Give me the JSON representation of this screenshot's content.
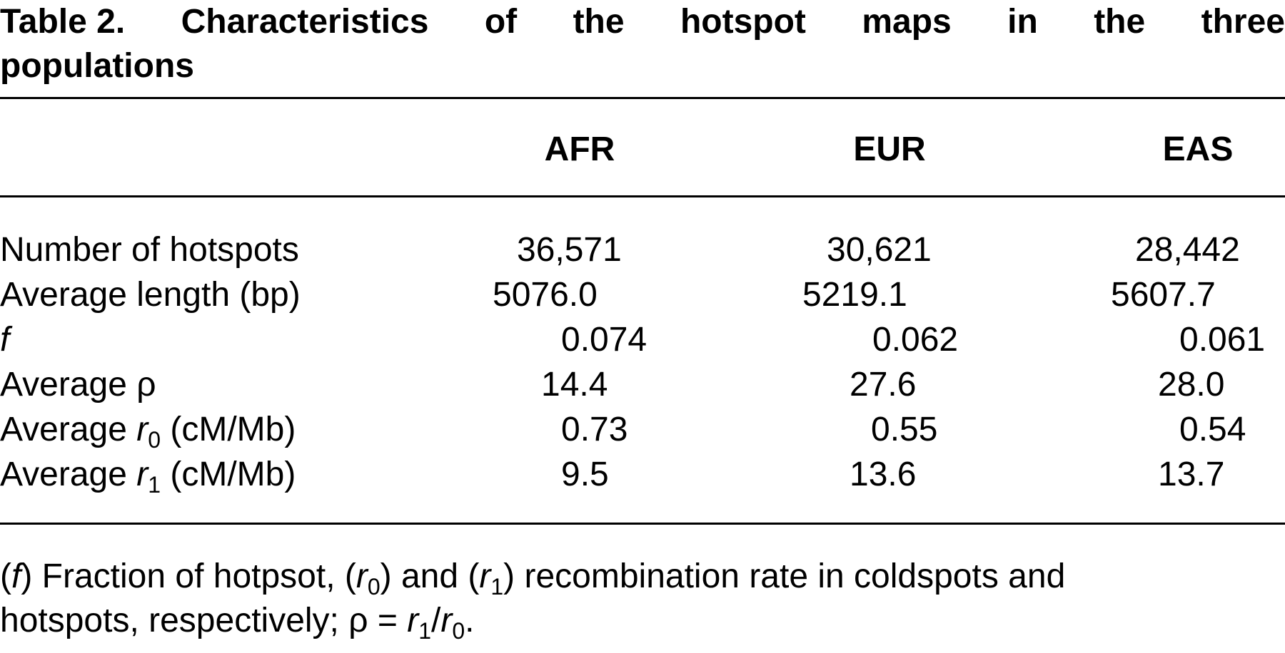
{
  "caption": {
    "label": "Table 2.",
    "title_words_line1": [
      "Characteristics",
      "of",
      "the",
      "hotspot",
      "maps",
      "in",
      "the",
      "three"
    ],
    "title_line2": "populations"
  },
  "table": {
    "columns": [
      "AFR",
      "EUR",
      "EAS"
    ],
    "rows": [
      {
        "label": "Number of hotspots",
        "values": [
          "36,571",
          "30,621",
          "28,442"
        ]
      },
      {
        "label": "Average length (bp)",
        "values": [
          "5076.0",
          "5219.1",
          "5607.7"
        ]
      },
      {
        "label": "f",
        "values": [
          "0.074",
          "0.062",
          "0.061"
        ]
      },
      {
        "label": "Average ρ",
        "values": [
          "14.4",
          "27.6",
          "28.0"
        ]
      },
      {
        "label_prefix": "Average ",
        "label_var": "r",
        "label_sub": "0",
        "label_suffix": " (cM/Mb)",
        "values": [
          "0.73",
          "0.55",
          "0.54"
        ]
      },
      {
        "label_prefix": "Average ",
        "label_var": "r",
        "label_sub": "1",
        "label_suffix": " (cM/Mb)",
        "values": [
          "9.5",
          "13.6",
          "13.7"
        ]
      }
    ]
  },
  "footnote": {
    "line1": {
      "open1": "(",
      "f": "f",
      "text1": ") Fraction of hotpsot, (",
      "r": "r",
      "sub0": "0",
      "text2": ") and (",
      "r2": "r",
      "sub1": "1",
      "text3": ") recombination rate in coldspots and"
    },
    "line2": {
      "text1": "hotspots, respectively; ρ = ",
      "r": "r",
      "sub1": "1",
      "slash": "/",
      "r2": "r",
      "sub0": "0",
      "end": "."
    }
  }
}
